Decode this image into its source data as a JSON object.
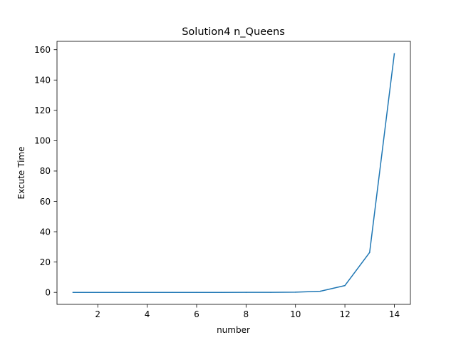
{
  "chart_data": {
    "type": "line",
    "title": "Solution4  n_Queens",
    "xlabel": "number",
    "ylabel": "Excute Time",
    "xlim": [
      0.35,
      14.65
    ],
    "ylim": [
      -7.9,
      165.5
    ],
    "xticks": [
      2,
      4,
      6,
      8,
      10,
      12,
      14
    ],
    "yticks": [
      0,
      20,
      40,
      60,
      80,
      100,
      120,
      140,
      160
    ],
    "grid": false,
    "series": [
      {
        "color": "#1f77b4",
        "x": [
          1,
          2,
          3,
          4,
          5,
          6,
          7,
          8,
          9,
          10,
          11,
          12,
          13,
          14
        ],
        "y": [
          0.0,
          0.0,
          0.0,
          0.0,
          0.0,
          0.0,
          0.0,
          0.01,
          0.03,
          0.15,
          0.75,
          4.5,
          26.3,
          157.3
        ]
      }
    ]
  }
}
